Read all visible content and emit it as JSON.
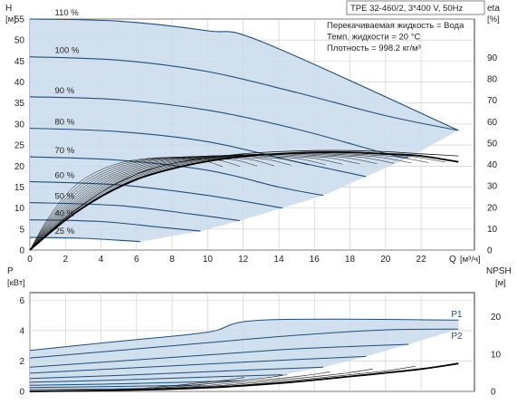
{
  "chart_data": [
    {
      "type": "line",
      "title": "TPE 32-460/2, 3*400 V, 50Hz",
      "ylabel": "H",
      "yunit": "[м]",
      "y2label": "eta",
      "y2unit": "[%]",
      "xlabel": "Q",
      "xunit": "[м³/ч]",
      "xlim": [
        0,
        25
      ],
      "ylim": [
        0,
        55
      ],
      "xticks": [
        "0",
        "2",
        "4",
        "6",
        "8",
        "10",
        "12",
        "14",
        "16",
        "18",
        "20",
        "22"
      ],
      "yticks": [
        "0",
        "5",
        "10",
        "15",
        "20",
        "25",
        "30",
        "35",
        "40",
        "45",
        "50",
        "55"
      ],
      "y2lim": [
        0,
        108
      ],
      "y2ticks": [
        "0",
        "10",
        "20",
        "30",
        "40",
        "50",
        "60",
        "70",
        "80",
        "90"
      ],
      "grid": true,
      "notes": [
        "Перекачиваемая жидкость = Вода",
        "Темп. жидкости = 20 °C",
        "Плотность = 998.2 кг/м³"
      ],
      "series": [
        {
          "name": "110 %",
          "points": [
            [
              0,
              55
            ],
            [
              5,
              54.5
            ],
            [
              10,
              52.2
            ],
            [
              13.1,
              49.5
            ],
            [
              24.1,
              28.5
            ]
          ]
        },
        {
          "name": "100 %",
          "points": [
            [
              0,
              46
            ],
            [
              5,
              45.2
            ],
            [
              10,
              42.5
            ],
            [
              15,
              37.5
            ],
            [
              20,
              32
            ],
            [
              24.1,
              28.5
            ]
          ]
        },
        {
          "name": "90 %",
          "points": [
            [
              0,
              36.5
            ],
            [
              5,
              35.8
            ],
            [
              10,
              33.3
            ],
            [
              15,
              28.8
            ],
            [
              20,
              23
            ],
            [
              21.3,
              22
            ]
          ]
        },
        {
          "name": "80 %",
          "points": [
            [
              0,
              29
            ],
            [
              5,
              28.2
            ],
            [
              10,
              25.8
            ],
            [
              15,
              21
            ],
            [
              18.9,
              17.5
            ]
          ]
        },
        {
          "name": "70 %",
          "points": [
            [
              0,
              22.2
            ],
            [
              5,
              21.4
            ],
            [
              10,
              19
            ],
            [
              14,
              15
            ],
            [
              16.5,
              13
            ]
          ]
        },
        {
          "name": "60 %",
          "points": [
            [
              0,
              16.3
            ],
            [
              5,
              15.5
            ],
            [
              10,
              13
            ],
            [
              14.2,
              10
            ]
          ]
        },
        {
          "name": "50 %",
          "points": [
            [
              0,
              11.3
            ],
            [
              5,
              10.6
            ],
            [
              9,
              8.6
            ],
            [
              11.8,
              7
            ]
          ]
        },
        {
          "name": "40 %",
          "points": [
            [
              0,
              7.2
            ],
            [
              4,
              6.8
            ],
            [
              7.2,
              5.5
            ],
            [
              9.6,
              4.5
            ]
          ]
        },
        {
          "name": "25 %",
          "points": [
            [
              0,
              3
            ],
            [
              3,
              2.8
            ],
            [
              6.2,
              2
            ]
          ]
        }
      ],
      "eta": [
        {
          "name": "eta 110 %",
          "points": [
            [
              0,
              0
            ],
            [
              2,
              15
            ],
            [
              4,
              27
            ],
            [
              6,
              35.5
            ],
            [
              8,
              40.5
            ],
            [
              10,
              43
            ],
            [
              12,
              45
            ],
            [
              14,
              46
            ],
            [
              16,
              46.5
            ],
            [
              18,
              46.5
            ],
            [
              20,
              46
            ],
            [
              22,
              45
            ],
            [
              24.1,
              44
            ]
          ]
        },
        {
          "name": "eta",
          "points": [
            [
              0,
              0
            ],
            [
              2,
              14
            ],
            [
              4,
              25
            ],
            [
              6,
              33
            ],
            [
              8,
              38
            ],
            [
              10,
              41.5
            ],
            [
              12,
              43.8
            ],
            [
              14,
              45
            ],
            [
              16,
              45.7
            ],
            [
              18,
              45.7
            ],
            [
              20,
              45
            ],
            [
              22,
              44
            ],
            [
              24.1,
              41.2
            ]
          ]
        }
      ]
    },
    {
      "type": "line",
      "ylabel": "P",
      "yunit": "[кВт]",
      "y2label": "NPSH",
      "y2unit": "[м]",
      "xlim": [
        0,
        25
      ],
      "ylim": [
        0,
        6.5
      ],
      "yticks": [
        "0",
        "2",
        "4",
        "6"
      ],
      "y2lim": [
        0,
        26.5
      ],
      "y2ticks": [
        "0",
        "10",
        "20"
      ],
      "grid": true,
      "series": [
        {
          "name": "P1",
          "points": [
            [
              0,
              2.7
            ],
            [
              5,
              3.3
            ],
            [
              10,
              3.9
            ],
            [
              13.1,
              4.7
            ],
            [
              24.1,
              4.7
            ]
          ]
        },
        {
          "name": "P2",
          "points": [
            [
              0,
              2.2
            ],
            [
              5,
              2.7
            ],
            [
              10,
              3.2
            ],
            [
              15,
              3.7
            ],
            [
              20,
              4.05
            ],
            [
              24.1,
              4.1
            ]
          ]
        },
        {
          "name": "",
          "points": [
            [
              0,
              1.6
            ],
            [
              5,
              2.0
            ],
            [
              10,
              2.4
            ],
            [
              15,
              2.8
            ],
            [
              21.3,
              3.1
            ]
          ]
        },
        {
          "name": "",
          "points": [
            [
              0,
              1.2
            ],
            [
              5,
              1.5
            ],
            [
              10,
              1.8
            ],
            [
              15,
              2.1
            ],
            [
              18.9,
              2.3
            ]
          ]
        },
        {
          "name": "",
          "points": [
            [
              0,
              0.85
            ],
            [
              5,
              1.05
            ],
            [
              10,
              1.3
            ],
            [
              16.5,
              1.6
            ]
          ]
        },
        {
          "name": "",
          "points": [
            [
              0,
              0.6
            ],
            [
              5,
              0.75
            ],
            [
              10,
              0.95
            ],
            [
              14.2,
              1.1
            ]
          ]
        },
        {
          "name": "",
          "points": [
            [
              0,
              0.4
            ],
            [
              5,
              0.5
            ],
            [
              11.8,
              0.7
            ]
          ]
        },
        {
          "name": "",
          "points": [
            [
              0,
              0.25
            ],
            [
              5,
              0.33
            ],
            [
              9.6,
              0.42
            ]
          ]
        },
        {
          "name": "",
          "points": [
            [
              0,
              0.12
            ],
            [
              6.2,
              0.18
            ]
          ]
        }
      ],
      "npsh": {
        "name": "NPSH",
        "points": [
          [
            0,
            0
          ],
          [
            6,
            0.4
          ],
          [
            10,
            1.0
          ],
          [
            14,
            2.2
          ],
          [
            18,
            4
          ],
          [
            22,
            6
          ],
          [
            24.1,
            7.5
          ]
        ]
      }
    }
  ]
}
